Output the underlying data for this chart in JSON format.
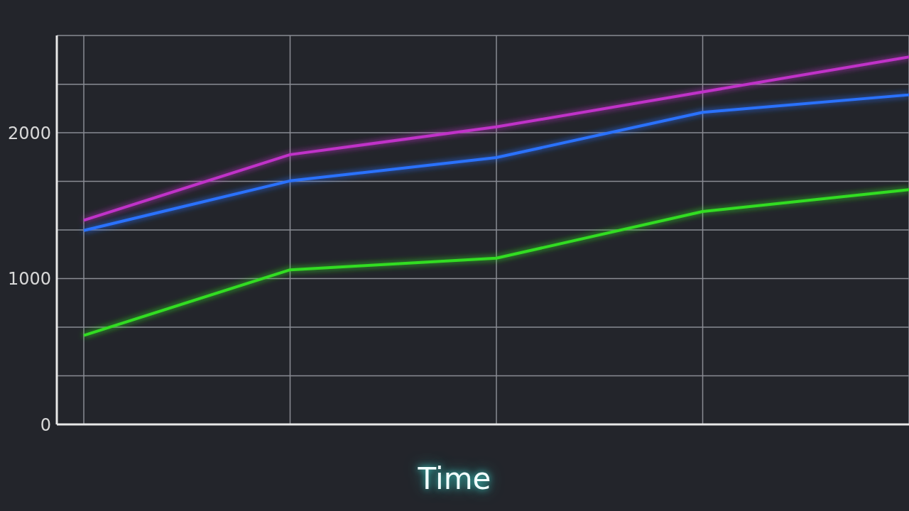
{
  "chart_data": {
    "type": "line",
    "xlabel": "Time",
    "categories": [
      null,
      null,
      null,
      null,
      null
    ],
    "series": [
      {
        "color": "#c032c8",
        "values": [
          1400,
          1850,
          2040,
          2280,
          2520
        ]
      },
      {
        "color": "#2a72ff",
        "values": [
          1330,
          1670,
          1830,
          2140,
          2260
        ]
      },
      {
        "color": "#33dd22",
        "values": [
          610,
          1060,
          1140,
          1460,
          1610
        ]
      }
    ],
    "ylim": [
      0,
      2667
    ],
    "yticks": [
      0,
      {
        "value": 333,
        "label": null
      },
      {
        "value": 667,
        "label": null
      },
      1000,
      {
        "value": 1333,
        "label": null
      },
      {
        "value": 1667,
        "label": null
      },
      2000,
      {
        "value": 2333,
        "label": null
      },
      {
        "value": 2667,
        "label": null
      }
    ],
    "grid": true,
    "legend": false,
    "marker": "none",
    "line_style": "solid"
  }
}
